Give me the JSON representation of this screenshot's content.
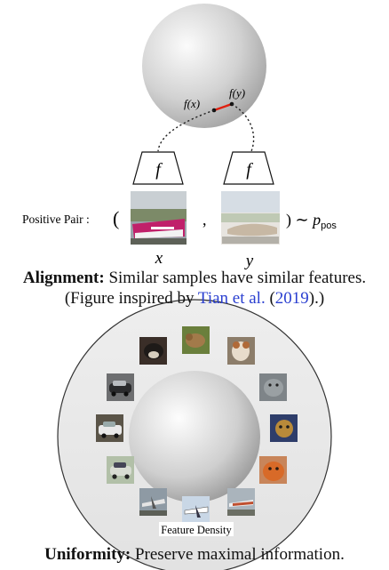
{
  "alignment": {
    "sphere_labels": {
      "fx": "f(x)",
      "fy": "f(y)"
    },
    "encoder_label": "f",
    "pair_label": "Positive Pair :",
    "open_paren": "(",
    "comma": ",",
    "close_expr": ") ∼ ",
    "p_symbol": "p",
    "p_subscript": "pos",
    "x_label": "x",
    "y_label": "y",
    "caption_bold": "Alignment:",
    "caption_rest": " Similar samples have similar features.",
    "caption_line2_pre": "(Figure inspired by ",
    "caption_cite_author": "Tian et al.",
    "caption_mid": " (",
    "caption_cite_year": "2019",
    "caption_end": ").)",
    "colors": {
      "link": "#2a3fd0",
      "pair_line": "#e02010"
    }
  },
  "uniformity": {
    "density_label": "Feature Density",
    "caption_bold": "Uniformity:",
    "caption_rest": " Preserve maximal information.",
    "thumbnails": [
      "dog-icon",
      "dog-icon",
      "dog-icon",
      "cat-icon",
      "cat-icon",
      "cat-icon",
      "airplane-icon",
      "airplane-icon",
      "airplane-icon",
      "car-icon",
      "car-icon",
      "car-icon",
      "car-icon"
    ]
  }
}
